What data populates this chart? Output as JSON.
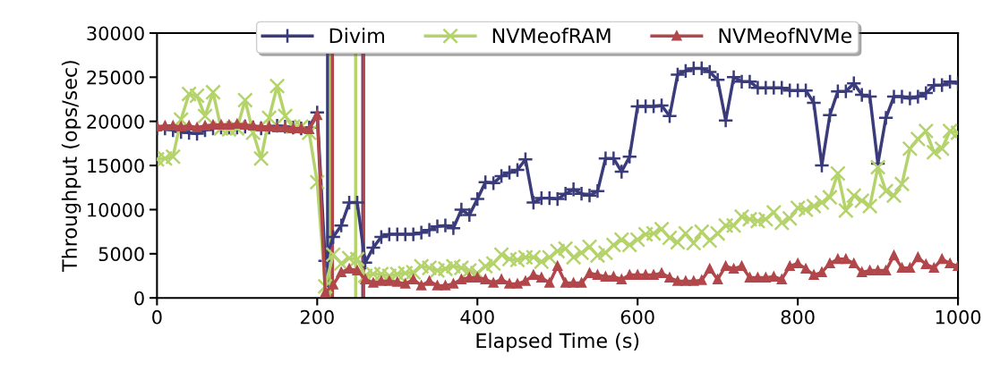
{
  "chart_data": {
    "type": "line",
    "xlabel": "Elapsed Time (s)",
    "ylabel": "Throughput (ops/sec)",
    "x": [
      0,
      10,
      20,
      30,
      40,
      50,
      60,
      70,
      80,
      90,
      100,
      110,
      120,
      130,
      140,
      150,
      160,
      170,
      180,
      190,
      200,
      210,
      220,
      230,
      240,
      250,
      260,
      270,
      280,
      290,
      300,
      310,
      320,
      330,
      340,
      350,
      360,
      370,
      380,
      390,
      400,
      410,
      420,
      430,
      440,
      450,
      460,
      470,
      480,
      490,
      500,
      510,
      520,
      530,
      540,
      550,
      560,
      570,
      580,
      590,
      600,
      610,
      620,
      630,
      640,
      650,
      660,
      670,
      680,
      690,
      700,
      710,
      720,
      730,
      740,
      750,
      760,
      770,
      780,
      790,
      800,
      810,
      820,
      830,
      840,
      850,
      860,
      870,
      880,
      890,
      900,
      910,
      920,
      930,
      940,
      950,
      960,
      970,
      980,
      990,
      1000
    ],
    "series": [
      {
        "name": "Divim",
        "color": "#3a3b7a",
        "marker": "cross",
        "values": [
          19200,
          19200,
          19000,
          18800,
          18700,
          18600,
          19000,
          19200,
          19300,
          19300,
          19300,
          19400,
          19300,
          19200,
          19300,
          19500,
          19400,
          19300,
          19200,
          19300,
          21000,
          4200,
          6900,
          8200,
          10800,
          10800,
          4000,
          5700,
          6900,
          7200,
          7200,
          7200,
          7200,
          7400,
          7700,
          8100,
          8200,
          7900,
          10000,
          9400,
          11200,
          13100,
          13000,
          13800,
          14200,
          14500,
          15700,
          10800,
          11300,
          11300,
          11200,
          11800,
          12300,
          11800,
          11600,
          12100,
          15800,
          15800,
          14300,
          16000,
          21700,
          21700,
          21700,
          21800,
          20600,
          25300,
          25700,
          26000,
          26000,
          25600,
          24700,
          20100,
          25000,
          24500,
          24500,
          23800,
          23800,
          23800,
          23800,
          23500,
          23500,
          23500,
          22100,
          15000,
          20700,
          23400,
          23400,
          24300,
          23000,
          22800,
          15200,
          20400,
          22800,
          22800,
          22600,
          22800,
          23200,
          24100,
          24100,
          24500,
          24300
        ]
      },
      {
        "name": "NVMeofRAM",
        "color": "#b5d36b",
        "marker": "x",
        "values": [
          15700,
          15800,
          16000,
          20200,
          23100,
          22900,
          20600,
          23300,
          19200,
          19100,
          19200,
          22400,
          18700,
          15800,
          20400,
          24000,
          20600,
          19400,
          19400,
          18700,
          13100,
          1300,
          4900,
          3900,
          4500,
          4400,
          2500,
          2700,
          2700,
          2500,
          2700,
          2800,
          2900,
          3600,
          3400,
          3100,
          3300,
          3600,
          3400,
          3100,
          2800,
          3600,
          3900,
          4900,
          4400,
          4300,
          4600,
          4600,
          4100,
          4600,
          5300,
          5600,
          4600,
          5100,
          5800,
          4800,
          5100,
          6000,
          6600,
          6000,
          6600,
          7200,
          7300,
          7800,
          6800,
          6300,
          7300,
          6200,
          7500,
          6500,
          7300,
          8200,
          8200,
          9200,
          8900,
          8700,
          8900,
          9700,
          8500,
          9000,
          10200,
          10000,
          10400,
          10800,
          11400,
          14100,
          9900,
          11600,
          11000,
          10400,
          14800,
          12100,
          11600,
          12900,
          16900,
          18000,
          18900,
          16500,
          16900,
          18900,
          18700
        ]
      },
      {
        "name": "NVMeofNVMe",
        "color": "#b2474b",
        "marker": "triangle",
        "values": [
          19400,
          19500,
          19500,
          19400,
          19500,
          19300,
          19500,
          19600,
          19600,
          19600,
          19700,
          19600,
          19500,
          19400,
          19400,
          19300,
          19300,
          19200,
          19200,
          19100,
          20700,
          600,
          1500,
          2900,
          3300,
          3100,
          2100,
          1700,
          1900,
          1900,
          1800,
          1600,
          2100,
          1400,
          1900,
          1400,
          1400,
          1600,
          2100,
          2300,
          2300,
          2100,
          1700,
          2100,
          1600,
          1600,
          1900,
          2600,
          2300,
          1700,
          3600,
          1700,
          1700,
          1700,
          2800,
          2600,
          2400,
          2400,
          2100,
          2600,
          2600,
          2600,
          2600,
          2800,
          2300,
          1900,
          1900,
          1900,
          2000,
          3300,
          2100,
          3600,
          3300,
          3600,
          2300,
          2300,
          2300,
          2400,
          2100,
          3600,
          3900,
          3300,
          2600,
          2900,
          3900,
          4400,
          4400,
          3900,
          2900,
          3100,
          3100,
          3100,
          4800,
          3400,
          3400,
          4600,
          3800,
          3400,
          4400,
          3900,
          3600
        ]
      }
    ],
    "ref_lines": [
      {
        "axis": "x",
        "value": 213,
        "color": "#3a3b7a"
      },
      {
        "axis": "x",
        "value": 257,
        "color": "#3a3b7a"
      },
      {
        "axis": "x",
        "value": 217,
        "color": "#b5d36b"
      },
      {
        "axis": "x",
        "value": 248,
        "color": "#b5d36b"
      },
      {
        "axis": "x",
        "value": 219,
        "color": "#b2474b"
      },
      {
        "axis": "x",
        "value": 258,
        "color": "#b2474b"
      }
    ],
    "xlim": [
      0,
      1000
    ],
    "xticks": [
      0,
      200,
      400,
      600,
      800,
      1000
    ],
    "ylim": [
      0,
      30000
    ],
    "yticks": [
      0,
      5000,
      10000,
      15000,
      20000,
      25000,
      30000
    ],
    "grid": false,
    "legend": "top",
    "line_style": "solid"
  }
}
